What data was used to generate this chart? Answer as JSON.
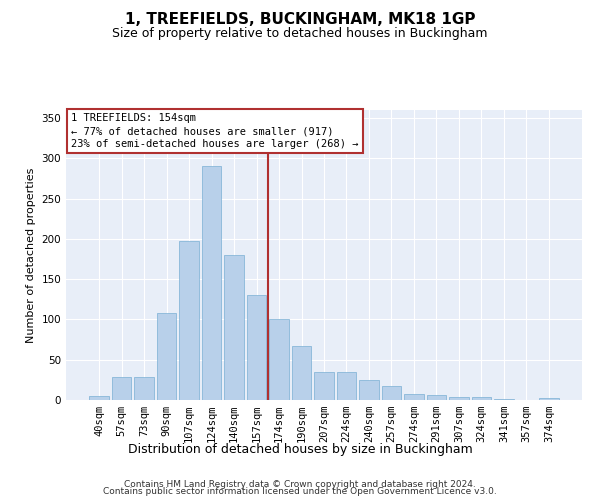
{
  "title": "1, TREEFIELDS, BUCKINGHAM, MK18 1GP",
  "subtitle": "Size of property relative to detached houses in Buckingham",
  "xlabel": "Distribution of detached houses by size in Buckingham",
  "ylabel": "Number of detached properties",
  "categories": [
    "40sqm",
    "57sqm",
    "73sqm",
    "90sqm",
    "107sqm",
    "124sqm",
    "140sqm",
    "157sqm",
    "174sqm",
    "190sqm",
    "207sqm",
    "224sqm",
    "240sqm",
    "257sqm",
    "274sqm",
    "291sqm",
    "307sqm",
    "324sqm",
    "341sqm",
    "357sqm",
    "374sqm"
  ],
  "values": [
    5,
    28,
    28,
    108,
    197,
    290,
    180,
    130,
    100,
    67,
    35,
    35,
    25,
    17,
    8,
    6,
    4,
    4,
    1,
    0,
    2
  ],
  "bar_color": "#b8d0ea",
  "bar_edgecolor": "#7aafd4",
  "background_color": "#e8eef8",
  "grid_color": "#ffffff",
  "vline_color": "#b03030",
  "vline_x": 7.5,
  "annotation_text": "1 TREEFIELDS: 154sqm\n← 77% of detached houses are smaller (917)\n23% of semi-detached houses are larger (268) →",
  "annotation_box_edgecolor": "#b03030",
  "annotation_box_facecolor": "#ffffff",
  "ylim": [
    0,
    360
  ],
  "yticks": [
    0,
    50,
    100,
    150,
    200,
    250,
    300,
    350
  ],
  "footer_line1": "Contains HM Land Registry data © Crown copyright and database right 2024.",
  "footer_line2": "Contains public sector information licensed under the Open Government Licence v3.0.",
  "title_fontsize": 11,
  "subtitle_fontsize": 9,
  "ylabel_fontsize": 8,
  "xlabel_fontsize": 9,
  "tick_fontsize": 7.5,
  "annotation_fontsize": 7.5,
  "footer_fontsize": 6.5,
  "fig_facecolor": "#ffffff"
}
